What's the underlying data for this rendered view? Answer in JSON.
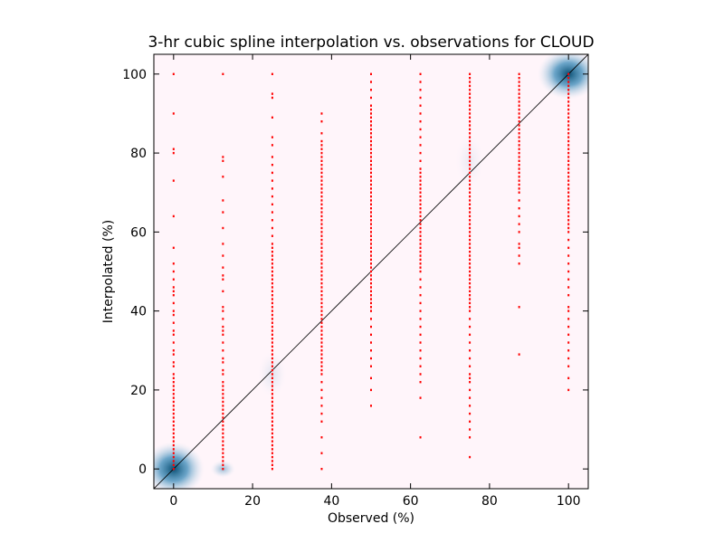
{
  "chart_data": {
    "type": "scatter",
    "title": "3-hr cubic spline interpolation vs. observations for CLOUD",
    "xlabel": "Observed (%)",
    "ylabel": "Interpolated (%)",
    "xlim": [
      -5,
      105
    ],
    "ylim": [
      -5,
      105
    ],
    "xticks": [
      0,
      20,
      40,
      60,
      80,
      100
    ],
    "yticks": [
      0,
      20,
      40,
      60,
      80,
      100
    ],
    "xtick_labels": [
      "0",
      "20",
      "40",
      "60",
      "80",
      "100"
    ],
    "ytick_labels": [
      "0",
      "20",
      "40",
      "60",
      "80",
      "100"
    ],
    "grid": false,
    "reference_line": {
      "x": [
        -5,
        105
      ],
      "y": [
        -5,
        105
      ]
    },
    "density_background": true,
    "colors": {
      "points": "#ff0000",
      "reference_line": "#000000",
      "background": "#fff5fa",
      "density_high": "#0a4f73"
    },
    "series": [
      {
        "x": 0,
        "y": [
          0,
          1,
          2,
          3,
          4,
          5,
          6,
          7,
          8,
          9,
          10,
          11,
          12,
          13,
          14,
          15,
          16,
          17,
          18,
          19,
          20,
          21,
          22,
          23,
          24,
          26,
          27,
          29,
          30,
          32,
          34,
          35,
          37,
          39,
          40,
          42,
          44,
          45,
          46,
          48,
          50,
          52,
          56,
          64,
          73,
          80,
          81,
          90,
          100
        ]
      },
      {
        "x": 12.5,
        "y": [
          0,
          1,
          2,
          3,
          4,
          5,
          6,
          7,
          8,
          9,
          10,
          11,
          12,
          13,
          14,
          15,
          16,
          17,
          18,
          19,
          20,
          21,
          22,
          24,
          25,
          27,
          28,
          30,
          32,
          34,
          35,
          36,
          38,
          40,
          41,
          45,
          48,
          49,
          51,
          54,
          57,
          61,
          65,
          68,
          74,
          78,
          79,
          100
        ]
      },
      {
        "x": 25,
        "y": [
          0,
          1,
          2,
          3,
          4,
          5,
          6,
          7,
          8,
          9,
          10,
          11,
          12,
          13,
          14,
          15,
          16,
          17,
          18,
          19,
          20,
          21,
          22,
          23,
          24,
          25,
          26,
          27,
          28,
          29,
          30,
          31,
          32,
          33,
          34,
          35,
          36,
          37,
          38,
          39,
          40,
          41,
          42,
          43,
          44,
          45,
          46,
          47,
          48,
          49,
          50,
          51,
          52,
          53,
          54,
          55,
          56,
          57,
          59,
          61,
          63,
          65,
          67,
          69,
          71,
          73,
          75,
          77,
          79,
          82,
          84,
          89,
          94,
          95,
          100
        ]
      },
      {
        "x": 37.5,
        "y": [
          0,
          4,
          8,
          12,
          14,
          16,
          18,
          20,
          22,
          24,
          25,
          26,
          27,
          28,
          29,
          30,
          31,
          32,
          33,
          34,
          35,
          36,
          37,
          38,
          39,
          40,
          41,
          42,
          43,
          44,
          45,
          46,
          47,
          48,
          49,
          50,
          51,
          52,
          53,
          54,
          55,
          56,
          57,
          58,
          59,
          60,
          61,
          62,
          63,
          64,
          65,
          66,
          67,
          68,
          69,
          70,
          71,
          72,
          73,
          74,
          75,
          76,
          77,
          78,
          79,
          80,
          81,
          82,
          83,
          85,
          88,
          90
        ]
      },
      {
        "x": 50,
        "y": [
          16,
          20,
          23,
          26,
          28,
          30,
          32,
          34,
          36,
          38,
          40,
          41,
          42,
          43,
          44,
          45,
          46,
          47,
          48,
          49,
          50,
          51,
          52,
          53,
          54,
          55,
          56,
          57,
          58,
          59,
          60,
          61,
          62,
          63,
          64,
          65,
          66,
          67,
          68,
          69,
          70,
          71,
          72,
          73,
          74,
          75,
          76,
          77,
          78,
          79,
          80,
          81,
          82,
          83,
          84,
          85,
          86,
          87,
          88,
          89,
          90,
          91,
          92,
          94,
          96,
          98,
          100
        ]
      },
      {
        "x": 62.5,
        "y": [
          8,
          18,
          22,
          24,
          26,
          28,
          30,
          32,
          34,
          36,
          38,
          40,
          42,
          44,
          46,
          48,
          50,
          51,
          52,
          53,
          54,
          55,
          56,
          57,
          58,
          59,
          60,
          61,
          62,
          63,
          64,
          65,
          66,
          67,
          68,
          69,
          70,
          71,
          72,
          73,
          74,
          75,
          76,
          78,
          80,
          82,
          84,
          86,
          88,
          90,
          92,
          94,
          96,
          98,
          100
        ]
      },
      {
        "x": 75,
        "y": [
          3,
          8,
          10,
          12,
          14,
          16,
          18,
          20,
          22,
          23,
          24,
          26,
          28,
          30,
          32,
          34,
          36,
          38,
          40,
          41,
          42,
          43,
          44,
          45,
          46,
          47,
          48,
          49,
          50,
          51,
          52,
          53,
          54,
          55,
          56,
          57,
          58,
          59,
          60,
          61,
          62,
          63,
          64,
          65,
          66,
          67,
          68,
          69,
          70,
          71,
          72,
          73,
          74,
          75,
          76,
          77,
          78,
          79,
          80,
          81,
          82,
          83,
          84,
          85,
          86,
          87,
          88,
          89,
          90,
          91,
          92,
          93,
          94,
          95,
          96,
          97,
          98,
          99,
          100
        ]
      },
      {
        "x": 87.5,
        "y": [
          29,
          41,
          52,
          54,
          56,
          57,
          60,
          62,
          64,
          66,
          68,
          70,
          71,
          72,
          73,
          74,
          75,
          76,
          77,
          78,
          79,
          80,
          81,
          82,
          83,
          84,
          85,
          86,
          87,
          88,
          89,
          90,
          91,
          92,
          93,
          94,
          95,
          96,
          97,
          98,
          99,
          100
        ]
      },
      {
        "x": 100,
        "y": [
          20,
          23,
          26,
          28,
          30,
          32,
          34,
          36,
          38,
          40,
          41,
          44,
          46,
          48,
          50,
          52,
          54,
          56,
          58,
          60,
          61,
          62,
          63,
          64,
          65,
          66,
          67,
          68,
          69,
          70,
          71,
          72,
          73,
          74,
          75,
          76,
          77,
          78,
          79,
          80,
          81,
          82,
          83,
          84,
          85,
          86,
          87,
          88,
          89,
          90,
          91,
          92,
          93,
          94,
          95,
          96,
          97,
          98,
          99,
          100
        ]
      }
    ]
  }
}
